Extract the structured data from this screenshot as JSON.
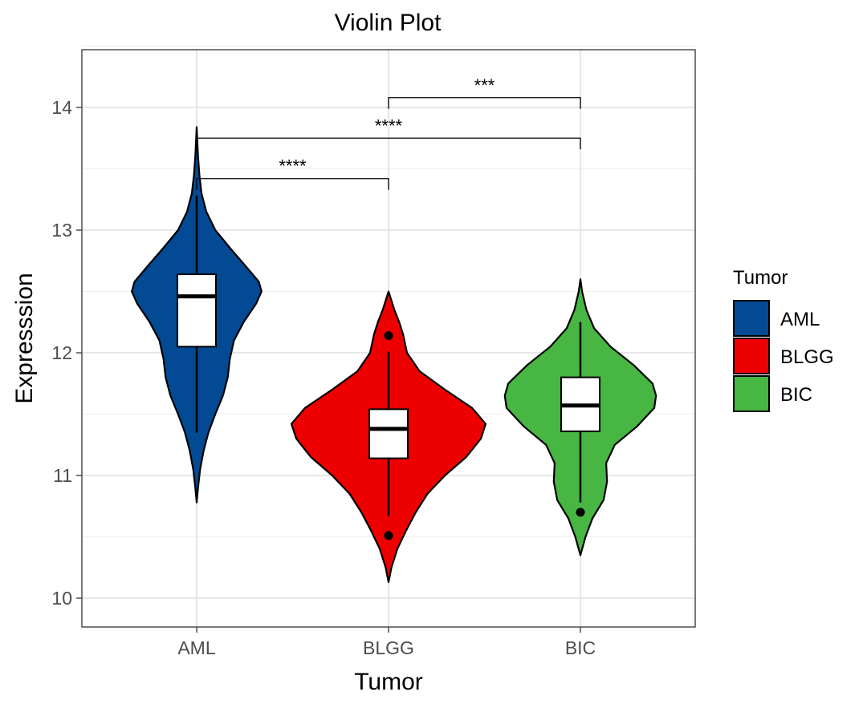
{
  "chart_data": {
    "type": "violin",
    "title": "Violin Plot",
    "xlabel": "Tumor",
    "ylabel": "Expresssion",
    "categories": [
      "AML",
      "BLGG",
      "BIC"
    ],
    "ylim": [
      9.75,
      14.5
    ],
    "yticks": [
      10,
      11,
      12,
      13,
      14
    ],
    "grid": true,
    "legend": {
      "title": "Tumor",
      "position": "right",
      "entries": [
        "AML",
        "BLGG",
        "BIC"
      ]
    },
    "colors": {
      "AML": "#034A94",
      "BLGG": "#EE0000",
      "BIC": "#47B642"
    },
    "series": [
      {
        "category": "AML",
        "violin_range": [
          10.78,
          13.84
        ],
        "box": {
          "min": 11.35,
          "q1": 12.05,
          "median": 12.46,
          "q3": 12.64,
          "max": 13.28
        },
        "outliers": [],
        "density": [
          [
            10.78,
            0.0
          ],
          [
            10.9,
            0.02
          ],
          [
            11.05,
            0.05
          ],
          [
            11.2,
            0.1
          ],
          [
            11.35,
            0.17
          ],
          [
            11.5,
            0.27
          ],
          [
            11.65,
            0.38
          ],
          [
            11.8,
            0.45
          ],
          [
            11.95,
            0.48
          ],
          [
            12.1,
            0.54
          ],
          [
            12.25,
            0.68
          ],
          [
            12.4,
            0.86
          ],
          [
            12.5,
            0.94
          ],
          [
            12.58,
            0.9
          ],
          [
            12.7,
            0.72
          ],
          [
            12.85,
            0.49
          ],
          [
            13.0,
            0.27
          ],
          [
            13.15,
            0.14
          ],
          [
            13.3,
            0.07
          ],
          [
            13.45,
            0.04
          ],
          [
            13.6,
            0.02
          ],
          [
            13.84,
            0.0
          ]
        ]
      },
      {
        "category": "BLGG",
        "violin_range": [
          10.13,
          12.5
        ],
        "box": {
          "min": 10.67,
          "q1": 11.14,
          "median": 11.38,
          "q3": 11.54,
          "max": 12.01
        },
        "outliers": [
          10.51,
          12.14
        ],
        "density": [
          [
            10.13,
            0.0
          ],
          [
            10.25,
            0.03
          ],
          [
            10.4,
            0.09
          ],
          [
            10.55,
            0.18
          ],
          [
            10.7,
            0.28
          ],
          [
            10.85,
            0.4
          ],
          [
            11.0,
            0.58
          ],
          [
            11.15,
            0.8
          ],
          [
            11.3,
            0.95
          ],
          [
            11.42,
            1.0
          ],
          [
            11.55,
            0.86
          ],
          [
            11.7,
            0.58
          ],
          [
            11.85,
            0.32
          ],
          [
            12.0,
            0.19
          ],
          [
            12.15,
            0.15
          ],
          [
            12.25,
            0.11
          ],
          [
            12.35,
            0.06
          ],
          [
            12.5,
            0.0
          ]
        ]
      },
      {
        "category": "BIC",
        "violin_range": [
          10.35,
          12.6
        ],
        "box": {
          "min": 10.78,
          "q1": 11.36,
          "median": 11.57,
          "q3": 11.8,
          "max": 12.25
        },
        "outliers": [
          10.7
        ],
        "density": [
          [
            10.35,
            0.0
          ],
          [
            10.5,
            0.06
          ],
          [
            10.65,
            0.14
          ],
          [
            10.8,
            0.27
          ],
          [
            10.95,
            0.31
          ],
          [
            11.1,
            0.3
          ],
          [
            11.25,
            0.4
          ],
          [
            11.4,
            0.66
          ],
          [
            11.55,
            0.86
          ],
          [
            11.65,
            0.88
          ],
          [
            11.75,
            0.84
          ],
          [
            11.9,
            0.62
          ],
          [
            12.05,
            0.35
          ],
          [
            12.2,
            0.16
          ],
          [
            12.35,
            0.07
          ],
          [
            12.5,
            0.02
          ],
          [
            12.6,
            0.0
          ]
        ]
      }
    ],
    "comparisons": [
      {
        "from": "AML",
        "to": "BLGG",
        "y": 13.42,
        "label": "****"
      },
      {
        "from": "AML",
        "to": "BIC",
        "y": 13.75,
        "label": "****"
      },
      {
        "from": "BLGG",
        "to": "BIC",
        "y": 14.08,
        "label": "***"
      }
    ]
  }
}
